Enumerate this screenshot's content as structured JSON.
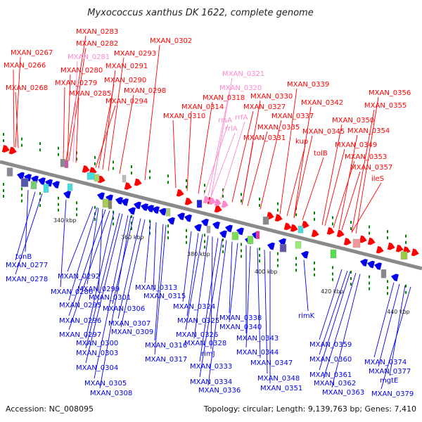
{
  "title": "Myxococcus xanthus DK 1622, complete genome",
  "footer": {
    "accession": "Accession: NC_008095",
    "info": "Topology: circular; Length: 9,139,763 bp; Genes: 7,410"
  },
  "colors": {
    "plus": "#ff0000",
    "minus": "#0000ee",
    "rna": "#ff88cc",
    "backbone": "#8a8a8a",
    "tick": "#008800"
  },
  "kbp_labels": [
    {
      "text": "340 kbp"
    },
    {
      "text": "360 kbp"
    },
    {
      "text": "380 kbp"
    },
    {
      "text": "400 kbp"
    },
    {
      "text": "420 kbp"
    },
    {
      "text": "440 kbp"
    }
  ],
  "top_labels": [
    {
      "text": "MXAN_0267",
      "color": "red"
    },
    {
      "text": "MXAN_0266",
      "color": "red"
    },
    {
      "text": "MXAN_0268",
      "color": "red"
    },
    {
      "text": "MXAN_0283",
      "color": "red"
    },
    {
      "text": "MXAN_0282",
      "color": "red"
    },
    {
      "text": "MXAN_0281",
      "color": "pink"
    },
    {
      "text": "MXAN_0280",
      "color": "red"
    },
    {
      "text": "MXAN_0279",
      "color": "red"
    },
    {
      "text": "MXAN_0285",
      "color": "red"
    },
    {
      "text": "MXAN_0293",
      "color": "red"
    },
    {
      "text": "MXAN_0291",
      "color": "red"
    },
    {
      "text": "MXAN_0290",
      "color": "red"
    },
    {
      "text": "MXAN_0298",
      "color": "red"
    },
    {
      "text": "MXAN_0294",
      "color": "red"
    },
    {
      "text": "MXAN_0302",
      "color": "red"
    },
    {
      "text": "MXAN_0310",
      "color": "red"
    },
    {
      "text": "MXAN_0314",
      "color": "red"
    },
    {
      "text": "MXAN_0321",
      "color": "pink"
    },
    {
      "text": "MXAN_0320",
      "color": "pink"
    },
    {
      "text": "MXAN_0318",
      "color": "red"
    },
    {
      "text": "rrsA",
      "color": "pink"
    },
    {
      "text": "rrlA",
      "color": "pink"
    },
    {
      "text": "rrfA",
      "color": "pink"
    },
    {
      "text": "MXAN_0327",
      "color": "red"
    },
    {
      "text": "MXAN_0330",
      "color": "red"
    },
    {
      "text": "MXAN_0335",
      "color": "red"
    },
    {
      "text": "MXAN_0331",
      "color": "red"
    },
    {
      "text": "MXAN_0337",
      "color": "red"
    },
    {
      "text": "MXAN_0339",
      "color": "red"
    },
    {
      "text": "MXAN_0342",
      "color": "red"
    },
    {
      "text": "kup",
      "color": "red"
    },
    {
      "text": "MXAN_0345",
      "color": "red"
    },
    {
      "text": "tolB",
      "color": "red"
    },
    {
      "text": "MXAN_0350",
      "color": "red"
    },
    {
      "text": "MXAN_0349",
      "color": "red"
    },
    {
      "text": "MXAN_0356",
      "color": "red"
    },
    {
      "text": "MXAN_0355",
      "color": "red"
    },
    {
      "text": "MXAN_0354",
      "color": "red"
    },
    {
      "text": "MXAN_0353",
      "color": "red"
    },
    {
      "text": "MXAN_0357",
      "color": "red"
    },
    {
      "text": "ileS",
      "color": "red"
    }
  ],
  "bottom_labels": [
    {
      "text": "tonB"
    },
    {
      "text": "MXAN_0277"
    },
    {
      "text": "MXAN_0278"
    },
    {
      "text": "MXAN_0286"
    },
    {
      "text": "MXAN_0292"
    },
    {
      "text": "MXAN_0299"
    },
    {
      "text": "MXAN_0301"
    },
    {
      "text": "MXAN_0295"
    },
    {
      "text": "MXAN_0296"
    },
    {
      "text": "MXAN_0297"
    },
    {
      "text": "MXAN_0300"
    },
    {
      "text": "MXAN_0303"
    },
    {
      "text": "MXAN_0304"
    },
    {
      "text": "MXAN_0305"
    },
    {
      "text": "MXAN_0308"
    },
    {
      "text": "MXAN_0313"
    },
    {
      "text": "MXAN_0315"
    },
    {
      "text": "MXAN_0306"
    },
    {
      "text": "MXAN_0307"
    },
    {
      "text": "MXAN_0309"
    },
    {
      "text": "MXAN_0316"
    },
    {
      "text": "MXAN_0317"
    },
    {
      "text": "MXAN_0324"
    },
    {
      "text": "MXAN_0325"
    },
    {
      "text": "MXAN_0326"
    },
    {
      "text": "MXAN_0328"
    },
    {
      "text": "rimJ"
    },
    {
      "text": "MXAN_0333"
    },
    {
      "text": "MXAN_0334"
    },
    {
      "text": "MXAN_0336"
    },
    {
      "text": "MXAN_0338"
    },
    {
      "text": "MXAN_0340"
    },
    {
      "text": "MXAN_0343"
    },
    {
      "text": "MXAN_0344"
    },
    {
      "text": "MXAN_0347"
    },
    {
      "text": "MXAN_0348"
    },
    {
      "text": "MXAN_0351"
    },
    {
      "text": "rimK"
    },
    {
      "text": "MXAN_0359"
    },
    {
      "text": "MXAN_0360"
    },
    {
      "text": "MXAN_0361"
    },
    {
      "text": "MXAN_0362"
    },
    {
      "text": "MXAN_0363"
    },
    {
      "text": "MXAN_0374"
    },
    {
      "text": "MXAN_0377"
    },
    {
      "text": "mgtE"
    },
    {
      "text": "MXAN_0379"
    }
  ]
}
